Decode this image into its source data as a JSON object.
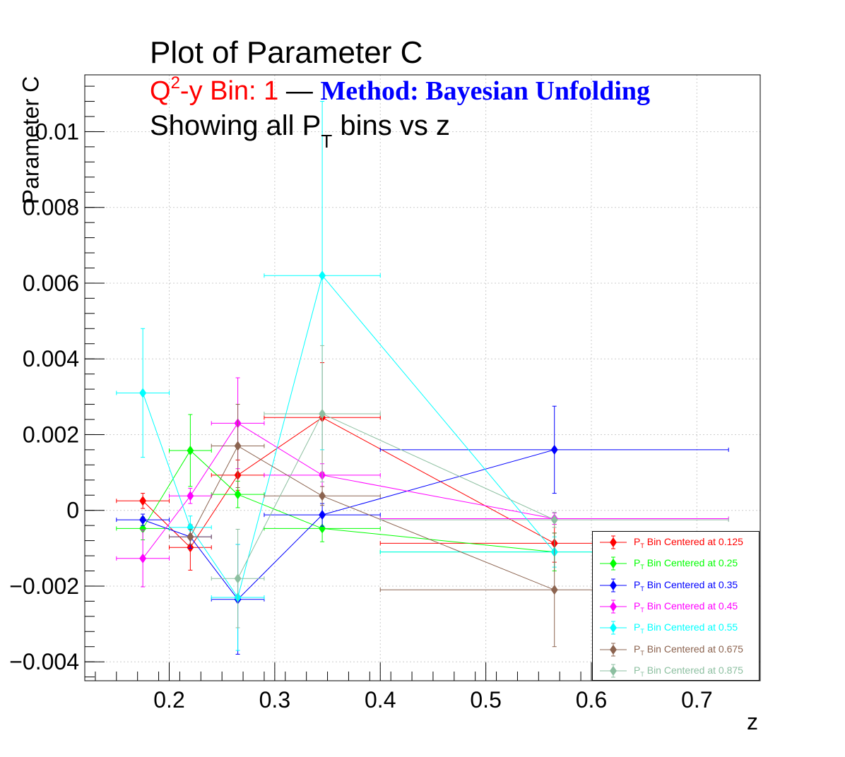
{
  "title": {
    "line1": "Plot of Parameter C",
    "line2_q": "Q",
    "line2_sup": "2",
    "line2_rest": "-y Bin: 1",
    "line2_dash": " — ",
    "line2_method": "Method: Bayesian Unfolding",
    "line3_pre": "Showing all P",
    "line3_sub": "T",
    "line3_post": " bins vs z"
  },
  "chart_data": {
    "type": "scatter",
    "xlabel": "z",
    "ylabel": "Parameter C",
    "xlim": [
      0.12,
      0.76
    ],
    "ylim": [
      -0.0045,
      0.0115
    ],
    "x_ticks": [
      "0.2",
      "0.3",
      "0.4",
      "0.5",
      "0.6",
      "0.7"
    ],
    "y_ticks": [
      "−0.004",
      "−0.002",
      "0",
      "0.002",
      "0.004",
      "0.006",
      "0.008",
      "0.01"
    ],
    "grid": true,
    "legend_position": "bottom-right",
    "series": [
      {
        "name": "P_T Bin Centered at 0.125",
        "legend_pre": "P",
        "legend_sub": "T",
        "legend_post": " Bin Centered at 0.125",
        "color": "#ff0000",
        "points": [
          {
            "x": 0.175,
            "y": 0.00025,
            "xerr": 0.025,
            "yerr": 0.0002
          },
          {
            "x": 0.22,
            "y": -0.00098,
            "xerr": 0.02,
            "yerr": 0.0006
          },
          {
            "x": 0.265,
            "y": 0.00093,
            "xerr": 0.025,
            "yerr": 0.0004
          },
          {
            "x": 0.345,
            "y": 0.00245,
            "xerr": 0.055,
            "yerr": 0.00145
          },
          {
            "x": 0.565,
            "y": -0.00087,
            "xerr": 0.165,
            "yerr": 0.0005
          }
        ]
      },
      {
        "name": "P_T Bin Centered at 0.25",
        "legend_pre": "P",
        "legend_sub": "T",
        "legend_post": " Bin Centered at 0.25",
        "color": "#00ff00",
        "points": [
          {
            "x": 0.175,
            "y": -0.00048,
            "xerr": 0.025,
            "yerr": 0.0003
          },
          {
            "x": 0.22,
            "y": 0.00158,
            "xerr": 0.02,
            "yerr": 0.00095
          },
          {
            "x": 0.265,
            "y": 0.00042,
            "xerr": 0.025,
            "yerr": 0.00035
          },
          {
            "x": 0.345,
            "y": -0.00048,
            "xerr": 0.055,
            "yerr": 0.00035
          },
          {
            "x": 0.565,
            "y": -0.0011,
            "xerr": 0.165,
            "yerr": 0.0005
          }
        ]
      },
      {
        "name": "P_T Bin Centered at 0.35",
        "legend_pre": "P",
        "legend_sub": "T",
        "legend_post": " Bin Centered at 0.35",
        "color": "#0000ff",
        "points": [
          {
            "x": 0.175,
            "y": -0.00025,
            "xerr": 0.025,
            "yerr": 0.00015
          },
          {
            "x": 0.22,
            "y": -0.0007,
            "xerr": 0.02,
            "yerr": 0.0003
          },
          {
            "x": 0.265,
            "y": -0.00235,
            "xerr": 0.025,
            "yerr": 0.00145
          },
          {
            "x": 0.345,
            "y": -0.00012,
            "xerr": 0.055,
            "yerr": 0.0003
          },
          {
            "x": 0.565,
            "y": 0.0016,
            "xerr": 0.165,
            "yerr": 0.00115
          }
        ]
      },
      {
        "name": "P_T Bin Centered at 0.45",
        "legend_pre": "P",
        "legend_sub": "T",
        "legend_post": " Bin Centered at 0.45",
        "color": "#ff00ff",
        "points": [
          {
            "x": 0.175,
            "y": -0.00127,
            "xerr": 0.025,
            "yerr": 0.00075
          },
          {
            "x": 0.22,
            "y": 0.00038,
            "xerr": 0.02,
            "yerr": 0.0002
          },
          {
            "x": 0.265,
            "y": 0.0023,
            "xerr": 0.025,
            "yerr": 0.0012
          },
          {
            "x": 0.345,
            "y": 0.00093,
            "xerr": 0.055,
            "yerr": 0.0003
          },
          {
            "x": 0.565,
            "y": -0.00022,
            "xerr": 0.165,
            "yerr": 0.00015
          }
        ]
      },
      {
        "name": "P_T Bin Centered at 0.55",
        "legend_pre": "P",
        "legend_sub": "T",
        "legend_post": " Bin Centered at 0.55",
        "color": "#00ffff",
        "points": [
          {
            "x": 0.175,
            "y": 0.0031,
            "xerr": 0.025,
            "yerr": 0.0017
          },
          {
            "x": 0.22,
            "y": -0.00045,
            "xerr": 0.02,
            "yerr": 0.0003
          },
          {
            "x": 0.265,
            "y": -0.0023,
            "xerr": 0.025,
            "yerr": 0.0014
          },
          {
            "x": 0.345,
            "y": 0.0062,
            "xerr": 0.055,
            "yerr": 0.0046
          },
          {
            "x": 0.565,
            "y": -0.0011,
            "xerr": 0.165,
            "yerr": 0.0004
          }
        ]
      },
      {
        "name": "P_T Bin Centered at 0.675",
        "legend_pre": "P",
        "legend_sub": "T",
        "legend_post": " Bin Centered at 0.675",
        "color": "#8c6450",
        "points": [
          {
            "x": 0.22,
            "y": -0.0007,
            "xerr": 0.02,
            "yerr": 0.0002
          },
          {
            "x": 0.265,
            "y": 0.0017,
            "xerr": 0.025,
            "yerr": 0.0011
          },
          {
            "x": 0.345,
            "y": 0.00038,
            "xerr": 0.055,
            "yerr": 0.00025
          },
          {
            "x": 0.565,
            "y": -0.0021,
            "xerr": 0.165,
            "yerr": 0.0015
          }
        ]
      },
      {
        "name": "P_T Bin Centered at 0.875",
        "legend_pre": "P",
        "legend_sub": "T",
        "legend_post": " Bin Centered at 0.875",
        "color": "#8cbfa0",
        "points": [
          {
            "x": 0.265,
            "y": -0.0018,
            "xerr": 0.025,
            "yerr": 0.0013
          },
          {
            "x": 0.345,
            "y": 0.00255,
            "xerr": 0.055,
            "yerr": 0.0018
          },
          {
            "x": 0.565,
            "y": -0.00025,
            "xerr": 0.165,
            "yerr": 0.0002
          }
        ]
      }
    ]
  }
}
